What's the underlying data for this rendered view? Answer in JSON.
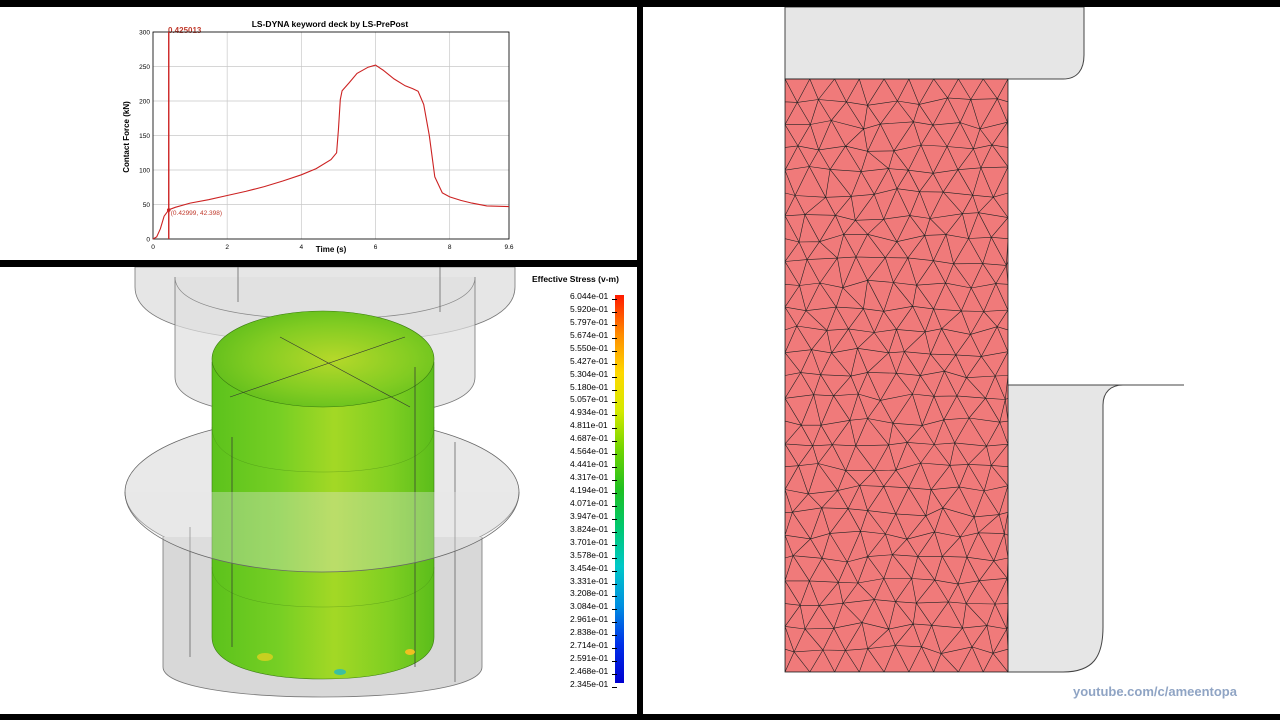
{
  "chart_panel": {
    "chart_data": {
      "type": "line",
      "title": "LS-DYNA keyword deck by LS-PrePost",
      "xlabel": "Time (s)",
      "ylabel": "Contact Force (kN)",
      "xlim": [
        0,
        9.6
      ],
      "ylim": [
        0,
        300
      ],
      "x_ticks": [
        "0",
        "2",
        "4",
        "6",
        "8",
        "9.6"
      ],
      "y_ticks": [
        "0",
        "50",
        "100",
        "150",
        "200",
        "250",
        "300"
      ],
      "grid": true,
      "current_time_readout": "0.425013",
      "cursor_readout": "(0.42999, 42.398)",
      "cursor_time": 0.425,
      "series": [
        {
          "color": "#cc2222",
          "x": [
            0,
            0.1,
            0.2,
            0.3,
            0.43,
            0.6,
            1.0,
            1.5,
            2.0,
            2.5,
            3.0,
            3.5,
            4.0,
            4.4,
            4.8,
            4.95,
            5.0,
            5.05,
            5.1,
            5.3,
            5.5,
            5.8,
            6.0,
            6.2,
            6.5,
            6.8,
            7.0,
            7.15,
            7.3,
            7.45,
            7.6,
            7.8,
            8.0,
            8.3,
            8.6,
            9.0,
            9.6
          ],
          "y": [
            0,
            3,
            15,
            33,
            42.4,
            46,
            52,
            57,
            63,
            69,
            76,
            84,
            93,
            102,
            115,
            125,
            158,
            202,
            215,
            227,
            240,
            249,
            252,
            245,
            232,
            222,
            218,
            214,
            195,
            150,
            90,
            67,
            61,
            56,
            52,
            48,
            47
          ]
        }
      ]
    }
  },
  "stress_panel": {
    "legend_title": "Effective Stress (v-m)",
    "legend_labels": [
      "6.044e-01",
      "5.920e-01",
      "5.797e-01",
      "5.674e-01",
      "5.550e-01",
      "5.427e-01",
      "5.304e-01",
      "5.180e-01",
      "5.057e-01",
      "4.934e-01",
      "4.811e-01",
      "4.687e-01",
      "4.564e-01",
      "4.441e-01",
      "4.317e-01",
      "4.194e-01",
      "4.071e-01",
      "3.947e-01",
      "3.824e-01",
      "3.701e-01",
      "3.578e-01",
      "3.454e-01",
      "3.331e-01",
      "3.208e-01",
      "3.084e-01",
      "2.961e-01",
      "2.838e-01",
      "2.714e-01",
      "2.591e-01",
      "2.468e-01",
      "2.345e-01"
    ],
    "colormap": [
      "#ff1a00",
      "#ff8a00",
      "#ffd800",
      "#d4ea00",
      "#6fd400",
      "#20c020",
      "#00c870",
      "#00c8c8",
      "#0090e0",
      "#0030e8",
      "#0000d0"
    ]
  },
  "mesh_panel": {
    "workpiece_color": "#f07a7a",
    "watermark": "youtube.com/c/ameentopa"
  }
}
